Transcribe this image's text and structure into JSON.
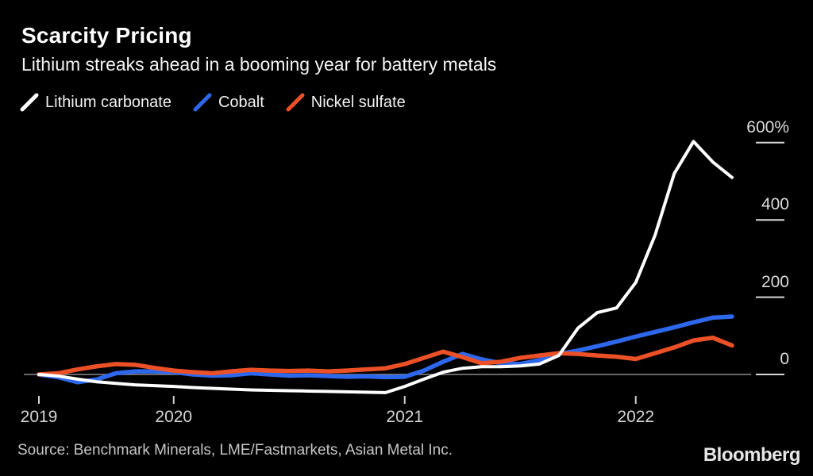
{
  "header": {
    "title": "Scarcity Pricing",
    "subtitle": "Lithium streaks ahead in a booming year for battery metals"
  },
  "legend": [
    {
      "label": "Lithium carbonate",
      "color": "#ffffff"
    },
    {
      "label": "Cobalt",
      "color": "#2d68ec"
    },
    {
      "label": "Nickel sulfate",
      "color": "#eb5027"
    }
  ],
  "chart_data": {
    "type": "line",
    "title": "Scarcity Pricing",
    "subtitle": "Lithium streaks ahead in a booming year for battery metals",
    "unit": "percent change",
    "background_color": "#000000",
    "grid": false,
    "legend_position": "top",
    "x_months": [
      "2019-06",
      "2019-07",
      "2019-08",
      "2019-09",
      "2019-10",
      "2019-11",
      "2019-12",
      "2020-01",
      "2020-02",
      "2020-03",
      "2020-04",
      "2020-05",
      "2020-06",
      "2020-07",
      "2020-08",
      "2020-09",
      "2020-10",
      "2020-11",
      "2020-12",
      "2021-01",
      "2021-02",
      "2021-03",
      "2021-04",
      "2021-05",
      "2021-06",
      "2021-07",
      "2021-08",
      "2021-09",
      "2021-10",
      "2021-11",
      "2021-12",
      "2022-01",
      "2022-02",
      "2022-03",
      "2022-04",
      "2022-05",
      "2022-06"
    ],
    "x_ticks": [
      {
        "label": "2019",
        "month_index": 0
      },
      {
        "label": "2020",
        "month_index": 7
      },
      {
        "label": "2021",
        "month_index": 19
      },
      {
        "label": "2022",
        "month_index": 31
      }
    ],
    "y_ticks": [
      {
        "label": "600%",
        "value": 600
      },
      {
        "label": "400",
        "value": 400
      },
      {
        "label": "200",
        "value": 200
      },
      {
        "label": "0",
        "value": 0
      }
    ],
    "ylim": [
      -80,
      650
    ],
    "series": [
      {
        "name": "Lithium carbonate",
        "color": "#ffffff",
        "values": [
          0,
          -4,
          -12,
          -19,
          -23,
          -27,
          -29,
          -31,
          -34,
          -36,
          -38,
          -40,
          -41,
          -42,
          -43,
          -44,
          -45,
          -46,
          -47,
          -31,
          -12,
          6,
          16,
          20,
          20,
          22,
          27,
          49,
          120,
          160,
          172,
          238,
          360,
          520,
          603,
          550,
          510
        ]
      },
      {
        "name": "Cobalt",
        "color": "#2d68ec",
        "values": [
          0,
          -7,
          -20,
          -13,
          3,
          8,
          8,
          6,
          0,
          -3,
          -2,
          3,
          0,
          -3,
          -2,
          -4,
          -6,
          -5,
          -7,
          -6,
          10,
          33,
          53,
          39,
          29,
          27,
          37,
          53,
          62,
          73,
          85,
          98,
          110,
          122,
          135,
          147,
          150
        ]
      },
      {
        "name": "Nickel sulfate",
        "color": "#eb5027",
        "values": [
          0,
          3,
          13,
          21,
          27,
          25,
          17,
          10,
          6,
          3,
          8,
          12,
          10,
          9,
          10,
          8,
          10,
          13,
          16,
          27,
          43,
          59,
          45,
          29,
          33,
          43,
          49,
          55,
          53,
          49,
          46,
          40,
          55,
          70,
          88,
          95,
          75
        ]
      }
    ]
  },
  "footer": {
    "source": "Source: Benchmark Minerals, LME/Fastmarkets, Asian Metal Inc.",
    "brand": "Bloomberg"
  }
}
